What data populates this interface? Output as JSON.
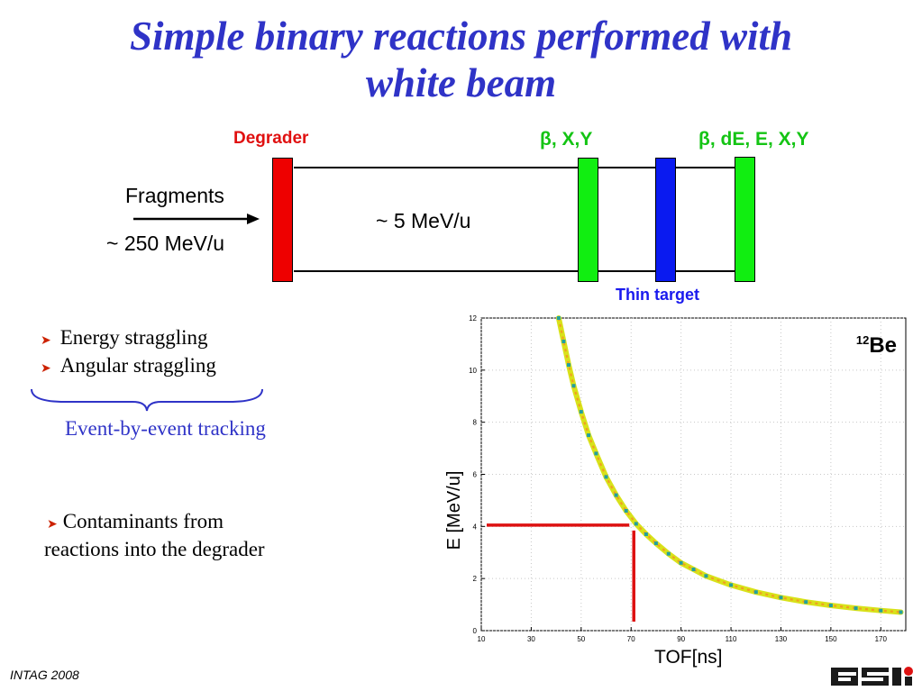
{
  "slide": {
    "title_line1": "Simple binary reactions performed with",
    "title_line2": "white beam",
    "footer": "INTAG 2008",
    "logo_text": "GSI"
  },
  "setup": {
    "degrader_label": "Degrader",
    "detector1_label": "β, X,Y",
    "detector2_label": "β, dE, E, X,Y",
    "thin_target_label": "Thin target",
    "fragments_label": "Fragments",
    "incoming_energy": "~ 250 MeV/u",
    "degraded_energy": "~ 5 MeV/u",
    "colors": {
      "degrader": "#ee0000",
      "detector": "#11ee11",
      "target": "#0a1af0"
    }
  },
  "bullets": {
    "item1": "Energy straggling",
    "item2": "Angular straggling",
    "tracking": "Event-by-event tracking",
    "item3_line1": "Contaminants from",
    "item3_line2": "reactions into the degrader"
  },
  "chart_data": {
    "type": "scatter",
    "title": "",
    "xlabel": "TOF[ns]",
    "ylabel": "E [MeV/u]",
    "xlim": [
      10,
      180
    ],
    "ylim": [
      0,
      12
    ],
    "xticks": [
      10,
      30,
      50,
      70,
      90,
      110,
      130,
      150,
      170
    ],
    "yticks": [
      0,
      2,
      4,
      6,
      8,
      10,
      12
    ],
    "annotation": {
      "isotope_mass": "12",
      "isotope_symbol": "Be"
    },
    "marker_line": {
      "x": 70,
      "y": 4.05,
      "color": "#dd1111"
    },
    "series": [
      {
        "x": [
          41,
          43,
          45,
          47,
          50,
          53,
          56,
          60,
          64,
          68,
          72,
          76,
          80,
          85,
          90,
          95,
          100,
          110,
          120,
          130,
          140,
          150,
          160,
          170,
          178
        ],
        "y": [
          12,
          11.1,
          10.2,
          9.4,
          8.4,
          7.5,
          6.8,
          5.9,
          5.2,
          4.6,
          4.1,
          3.7,
          3.35,
          2.95,
          2.6,
          2.35,
          2.1,
          1.75,
          1.48,
          1.27,
          1.1,
          0.97,
          0.86,
          0.77,
          0.71
        ]
      }
    ]
  }
}
